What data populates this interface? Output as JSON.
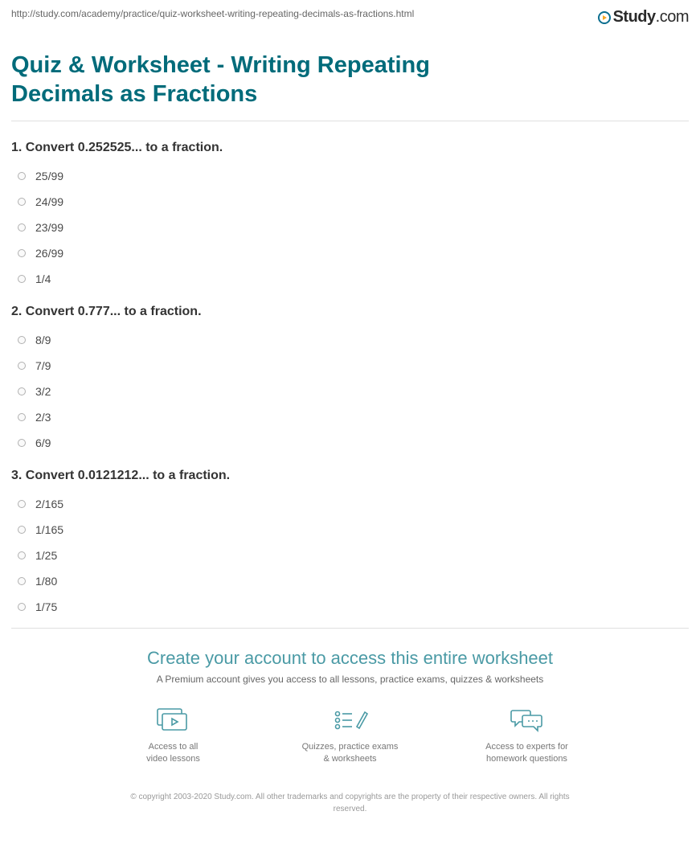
{
  "url": "http://study.com/academy/practice/quiz-worksheet-writing-repeating-decimals-as-fractions.html",
  "logo": {
    "study": "Study",
    "dotcom": ".com"
  },
  "title": "Quiz & Worksheet - Writing Repeating Decimals as Fractions",
  "questions": [
    {
      "prompt": "1. Convert 0.252525... to a fraction.",
      "options": [
        "25/99",
        "24/99",
        "23/99",
        "26/99",
        "1/4"
      ]
    },
    {
      "prompt": "2. Convert 0.777... to a fraction.",
      "options": [
        "8/9",
        "7/9",
        "3/2",
        "2/3",
        "6/9"
      ]
    },
    {
      "prompt": "3. Convert 0.0121212... to a fraction.",
      "options": [
        "2/165",
        "1/165",
        "1/25",
        "1/80",
        "1/75"
      ]
    }
  ],
  "cta": {
    "title": "Create your account to access this entire worksheet",
    "subtitle": "A Premium account gives you access to all lessons, practice exams, quizzes & worksheets",
    "features": [
      {
        "line1": "Access to all",
        "line2": "video lessons"
      },
      {
        "line1": "Quizzes, practice exams",
        "line2": "& worksheets"
      },
      {
        "line1": "Access to experts for",
        "line2": "homework questions"
      }
    ]
  },
  "copyright": "© copyright 2003-2020 Study.com. All other trademarks and copyrights are the property of their respective owners. All rights reserved.",
  "colors": {
    "title": "#006b7a",
    "cta_title": "#4a9aa5",
    "icon_stroke": "#4a9aa5",
    "text": "#4a4a4a",
    "muted": "#777777",
    "divider": "#e0e0e0",
    "logo_ring": "#0b6e8f",
    "logo_play": "#f5a623"
  }
}
